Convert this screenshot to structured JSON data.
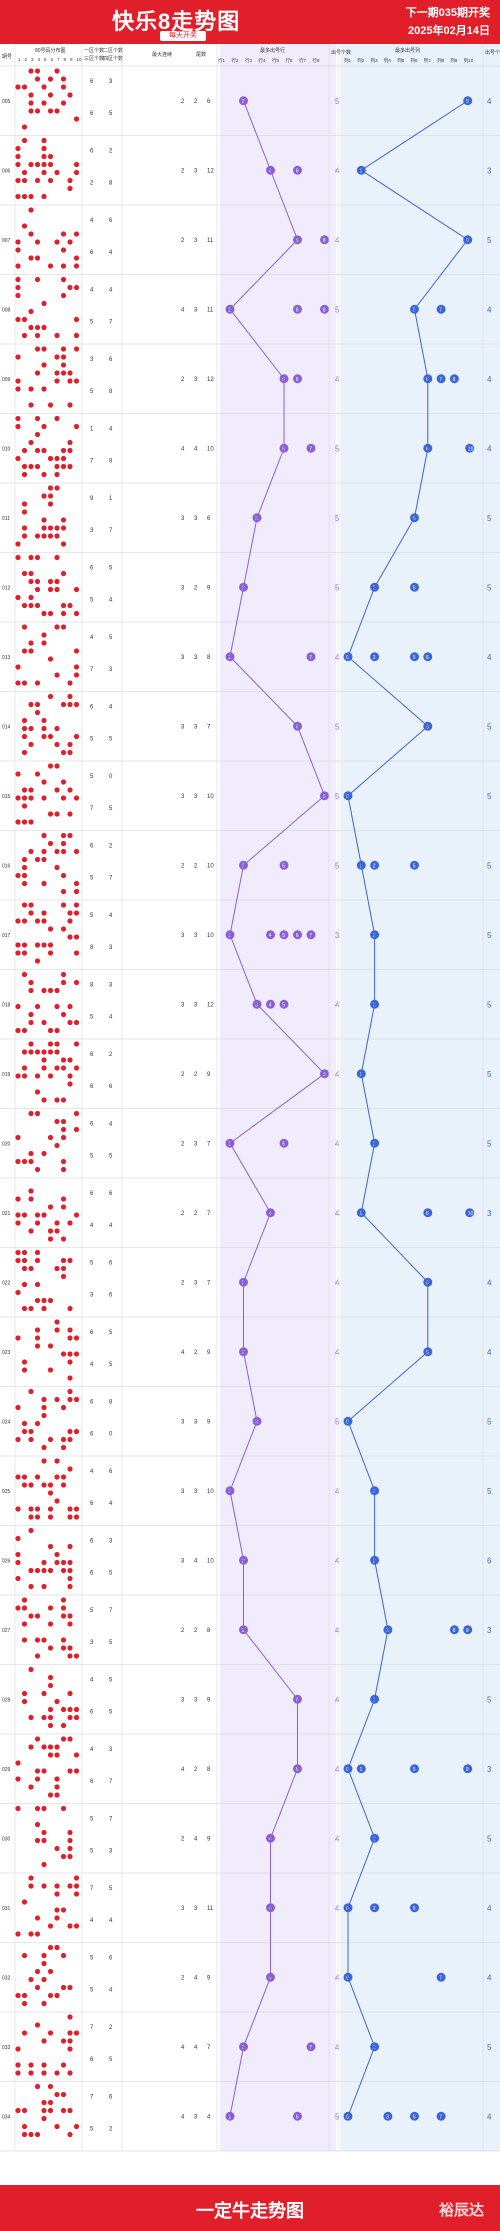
{
  "header": {
    "title": "快乐8走势图",
    "subtitle": "每天开奖",
    "next_draw": "下一期035期开奖",
    "date": "2025年02月14日"
  },
  "footer": {
    "text": "一定牛走势图",
    "brand": "裕辰达"
  },
  "colors": {
    "red": "#e01f2b",
    "purple": "#8a5fd6",
    "blue": "#3a64d8",
    "purple_bg": "#f1ecfb",
    "blue_bg": "#e9f2fb"
  },
  "chart_data": {
    "type": "table",
    "columns": {
      "issue": "期号",
      "dist": "80号码分布图",
      "zone1": "一区个数",
      "zone3": "三区个数",
      "zone2": "二区个数",
      "zone4": "四区个数",
      "max_gap": "最大连续",
      "tail": "尾数",
      "repeat_block": "最多出号行",
      "row_count": "出号个数",
      "col_block": "最多出号列",
      "col_count": "出号个数"
    },
    "dist_ticks": [
      "1",
      "2",
      "3",
      "4",
      "5",
      "6",
      "7",
      "8",
      "9",
      "10"
    ],
    "row_headers": [
      "行1",
      "行2",
      "行3",
      "行4",
      "行5",
      "行6",
      "行7",
      "行8"
    ],
    "col_headers": [
      "列1",
      "列2",
      "列3",
      "列4",
      "列5",
      "列6",
      "列7",
      "列8",
      "列9",
      "列10"
    ],
    "issues": [
      {
        "label": "005",
        "zone": [
          6,
          6,
          3,
          5
        ],
        "n": [
          2,
          2,
          6
        ],
        "row": 1,
        "rows": [
          1
        ],
        "rc": 5,
        "col": 9,
        "cols": [
          9
        ],
        "cc": 4
      },
      {
        "label": "006",
        "zone": [
          6,
          2,
          2,
          8
        ],
        "n": [
          2,
          3,
          12
        ],
        "row": 3,
        "rows": [
          3,
          5
        ],
        "rc": 4,
        "col": 1,
        "cols": [
          1
        ],
        "cc": 3
      },
      {
        "label": "007",
        "zone": [
          4,
          6,
          6,
          4
        ],
        "n": [
          2,
          3,
          11
        ],
        "row": 5,
        "rows": [
          5,
          7
        ],
        "rc": 4,
        "col": 9,
        "cols": [
          9
        ],
        "cc": 5
      },
      {
        "label": "008",
        "zone": [
          4,
          5,
          4,
          7
        ],
        "n": [
          4,
          3,
          11
        ],
        "row": 0,
        "rows": [
          0,
          5,
          7
        ],
        "rc": 5,
        "col": 5,
        "cols": [
          5,
          7
        ],
        "cc": 4
      },
      {
        "label": "009",
        "zone": [
          3,
          5,
          6,
          8
        ],
        "n": [
          2,
          3,
          12
        ],
        "row": 4,
        "rows": [
          4,
          5
        ],
        "rc": 4,
        "col": 6,
        "cols": [
          6,
          7,
          8
        ],
        "cc": 4
      },
      {
        "label": "010",
        "zone": [
          1,
          7,
          4,
          8
        ],
        "n": [
          4,
          4,
          10
        ],
        "row": 4,
        "rows": [
          4,
          6
        ],
        "rc": 5,
        "col": 6,
        "cols": [
          6,
          10
        ],
        "cc": 4
      },
      {
        "label": "011",
        "zone": [
          9,
          3,
          1,
          7
        ],
        "n": [
          3,
          3,
          6
        ],
        "row": 2,
        "rows": [
          2
        ],
        "rc": 5,
        "col": 5,
        "cols": [
          5
        ],
        "cc": 5
      },
      {
        "label": "012",
        "zone": [
          6,
          5,
          5,
          4
        ],
        "n": [
          3,
          2,
          9
        ],
        "row": 1,
        "rows": [
          1
        ],
        "rc": 5,
        "col": 2,
        "cols": [
          2,
          5
        ],
        "cc": 5
      },
      {
        "label": "013",
        "zone": [
          4,
          7,
          5,
          3
        ],
        "n": [
          3,
          3,
          8
        ],
        "row": 0,
        "rows": [
          0,
          6
        ],
        "rc": 4,
        "col": 0,
        "cols": [
          0,
          2,
          5,
          6
        ],
        "cc": 4
      },
      {
        "label": "014",
        "zone": [
          6,
          5,
          4,
          5
        ],
        "n": [
          3,
          3,
          7
        ],
        "row": 5,
        "rows": [
          5
        ],
        "rc": 5,
        "col": 6,
        "cols": [
          6
        ],
        "cc": 5
      },
      {
        "label": "015",
        "zone": [
          5,
          7,
          0,
          5
        ],
        "n": [
          3,
          3,
          10
        ],
        "row": 7,
        "rows": [
          7
        ],
        "rc": 5,
        "col": 0,
        "cols": [
          0
        ],
        "cc": 5
      },
      {
        "label": "016",
        "zone": [
          6,
          5,
          2,
          7
        ],
        "n": [
          2,
          2,
          10
        ],
        "row": 1,
        "rows": [
          1,
          4
        ],
        "rc": 5,
        "col": 1,
        "cols": [
          1,
          2,
          5
        ],
        "cc": 5
      },
      {
        "label": "017",
        "zone": [
          5,
          8,
          4,
          3
        ],
        "n": [
          3,
          3,
          10
        ],
        "row": 0,
        "rows": [
          0,
          3,
          4,
          5,
          6
        ],
        "rc": 3,
        "col": 2,
        "cols": [
          2
        ],
        "cc": 5
      },
      {
        "label": "018",
        "zone": [
          8,
          5,
          3,
          4
        ],
        "n": [
          3,
          3,
          12
        ],
        "row": 2,
        "rows": [
          2,
          3,
          4
        ],
        "rc": 4,
        "col": 2,
        "cols": [
          2
        ],
        "cc": 5
      },
      {
        "label": "019",
        "zone": [
          6,
          6,
          2,
          6
        ],
        "n": [
          2,
          2,
          9
        ],
        "row": 7,
        "rows": [
          7
        ],
        "rc": 4,
        "col": 1,
        "cols": [
          1
        ],
        "cc": 5
      },
      {
        "label": "020",
        "zone": [
          6,
          5,
          4,
          5
        ],
        "n": [
          2,
          3,
          7
        ],
        "row": 0,
        "rows": [
          0,
          4
        ],
        "rc": 4,
        "col": 2,
        "cols": [
          2
        ],
        "cc": 5
      },
      {
        "label": "021",
        "zone": [
          6,
          4,
          6,
          4
        ],
        "n": [
          2,
          2,
          7
        ],
        "row": 3,
        "rows": [
          3
        ],
        "rc": 4,
        "col": 1,
        "cols": [
          1,
          6,
          10
        ],
        "cc": 3
      },
      {
        "label": "022",
        "zone": [
          5,
          3,
          6,
          6
        ],
        "n": [
          2,
          3,
          7
        ],
        "row": 1,
        "rows": [
          1
        ],
        "rc": 4,
        "col": 6,
        "cols": [
          6
        ],
        "cc": 4
      },
      {
        "label": "023",
        "zone": [
          6,
          4,
          5,
          5
        ],
        "n": [
          4,
          2,
          9
        ],
        "row": 1,
        "rows": [
          1
        ],
        "rc": 4,
        "col": 6,
        "cols": [
          6
        ],
        "cc": 4
      },
      {
        "label": "024",
        "zone": [
          6,
          6,
          8,
          0
        ],
        "n": [
          3,
          3,
          9
        ],
        "row": 2,
        "rows": [
          2
        ],
        "rc": 5,
        "col": 0,
        "cols": [
          0
        ],
        "cc": 5
      },
      {
        "label": "025",
        "zone": [
          4,
          6,
          6,
          4
        ],
        "n": [
          3,
          3,
          10
        ],
        "row": 0,
        "rows": [
          0
        ],
        "rc": 4,
        "col": 2,
        "cols": [
          2
        ],
        "cc": 5
      },
      {
        "label": "026",
        "zone": [
          6,
          6,
          3,
          5
        ],
        "n": [
          3,
          4,
          10
        ],
        "row": 1,
        "rows": [
          1
        ],
        "rc": 4,
        "col": 2,
        "cols": [
          2
        ],
        "cc": 6
      },
      {
        "label": "027",
        "zone": [
          5,
          3,
          7,
          5
        ],
        "n": [
          2,
          2,
          8
        ],
        "row": 1,
        "rows": [
          1
        ],
        "rc": 4,
        "col": 3,
        "cols": [
          3,
          8,
          9
        ],
        "cc": 3
      },
      {
        "label": "028",
        "zone": [
          4,
          6,
          5,
          5
        ],
        "n": [
          3,
          3,
          9
        ],
        "row": 5,
        "rows": [
          5
        ],
        "rc": 4,
        "col": 2,
        "cols": [
          2
        ],
        "cc": 5
      },
      {
        "label": "029",
        "zone": [
          4,
          6,
          3,
          7
        ],
        "n": [
          4,
          2,
          8
        ],
        "row": 5,
        "rows": [
          5
        ],
        "rc": 4,
        "col": 0,
        "cols": [
          0,
          1,
          5,
          9
        ],
        "cc": 3
      },
      {
        "label": "030",
        "zone": [
          5,
          5,
          7,
          3
        ],
        "n": [
          2,
          4,
          9
        ],
        "row": 3,
        "rows": [
          3
        ],
        "rc": 4,
        "col": 2,
        "cols": [
          2
        ],
        "cc": 5
      },
      {
        "label": "031",
        "zone": [
          7,
          4,
          5,
          4
        ],
        "n": [
          3,
          3,
          11
        ],
        "row": 3,
        "rows": [
          3
        ],
        "rc": 4,
        "col": 0,
        "cols": [
          0,
          2,
          5
        ],
        "cc": 4
      },
      {
        "label": "032",
        "zone": [
          5,
          5,
          6,
          4
        ],
        "n": [
          2,
          4,
          9
        ],
        "row": 3,
        "rows": [
          3
        ],
        "rc": 4,
        "col": 0,
        "cols": [
          0,
          7
        ],
        "cc": 4
      },
      {
        "label": "033",
        "zone": [
          7,
          6,
          2,
          5
        ],
        "n": [
          4,
          4,
          7
        ],
        "row": 1,
        "rows": [
          1,
          6
        ],
        "rc": 4,
        "col": 2,
        "cols": [
          2
        ],
        "cc": 5
      },
      {
        "label": "034",
        "zone": [
          7,
          5,
          6,
          2
        ],
        "n": [
          4,
          3,
          4
        ],
        "row": 0,
        "rows": [
          0,
          5
        ],
        "rc": 5,
        "col": 0,
        "cols": [
          0,
          3,
          5,
          7
        ],
        "cc": 4
      }
    ]
  }
}
